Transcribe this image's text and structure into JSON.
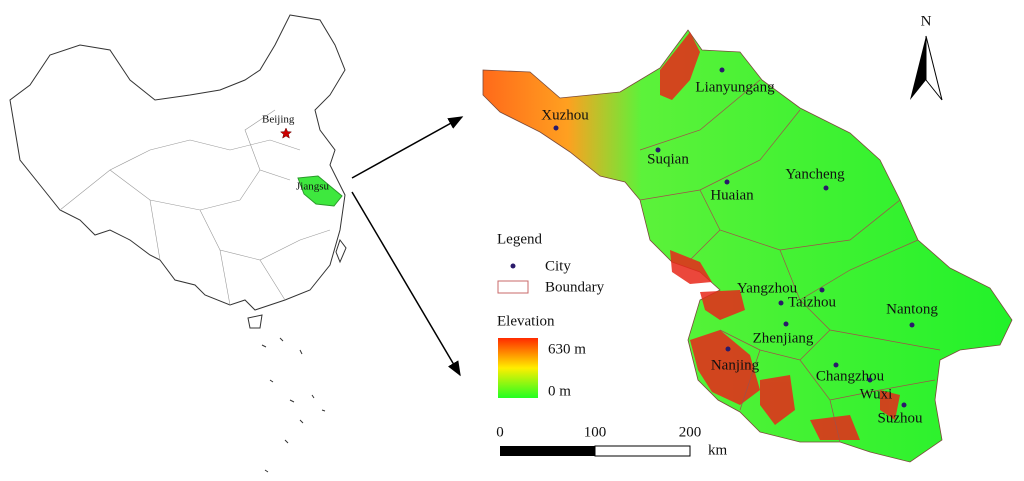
{
  "inset": {
    "beijing": "Beijing",
    "jiangsu": "Jiangsu"
  },
  "north": "N",
  "cities": [
    "Lianyungang",
    "Xuzhou",
    "Suqian",
    "Huaian",
    "Yancheng",
    "Yangzhou",
    "Taizhou",
    "Nantong",
    "Zhenjiang",
    "Nanjing",
    "Changzhou",
    "Wuxi",
    "Suzhou"
  ],
  "legend": {
    "title": "Legend",
    "city": "City",
    "boundary": "Boundary",
    "elevation": "Elevation",
    "max": "630 m",
    "min": "0 m"
  },
  "scale": {
    "ticks": [
      0,
      100,
      200
    ],
    "unit": "km"
  }
}
